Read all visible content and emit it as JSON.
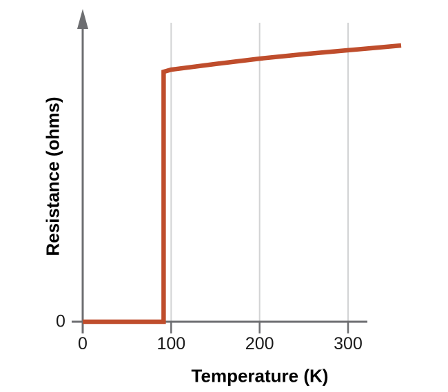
{
  "figure": {
    "background_color": "#ffffff"
  },
  "colors": {
    "curve": "#bf4d2c",
    "axis": "#6d6e71",
    "gridline": "#d2d3d4",
    "text": "#1a1a1a"
  },
  "chart_data": {
    "type": "line",
    "title": "",
    "xlabel": "Temperature (K)",
    "ylabel": "Resistance (ohms)",
    "x_ticks": [
      0,
      100,
      200,
      300
    ],
    "x_tick_labels": [
      "0",
      "100",
      "200",
      "300"
    ],
    "y_ticks": [
      0
    ],
    "y_tick_labels": [
      "0"
    ],
    "x_range": [
      0,
      360
    ],
    "y_range_arbitrary_units": [
      0,
      1
    ],
    "grid": "vertical-gridlines-only",
    "legend": "none",
    "critical_temperature_K": 92,
    "description": "Resistance of a superconductor: zero ohms below the critical temperature (~92 K), an abrupt vertical jump at the critical temperature, then a gently rising normal-state resistance at higher temperatures.",
    "series": [
      {
        "name": "resistance",
        "units": "arbitrary (unlabeled ohm scale)",
        "points": [
          [
            0,
            0
          ],
          [
            91.5,
            0
          ],
          [
            91.5,
            0.836
          ],
          [
            100,
            0.843
          ],
          [
            150,
            0.862
          ],
          [
            200,
            0.88
          ],
          [
            250,
            0.895
          ],
          [
            300,
            0.908
          ],
          [
            330,
            0.916
          ],
          [
            360,
            0.924
          ]
        ]
      }
    ]
  }
}
